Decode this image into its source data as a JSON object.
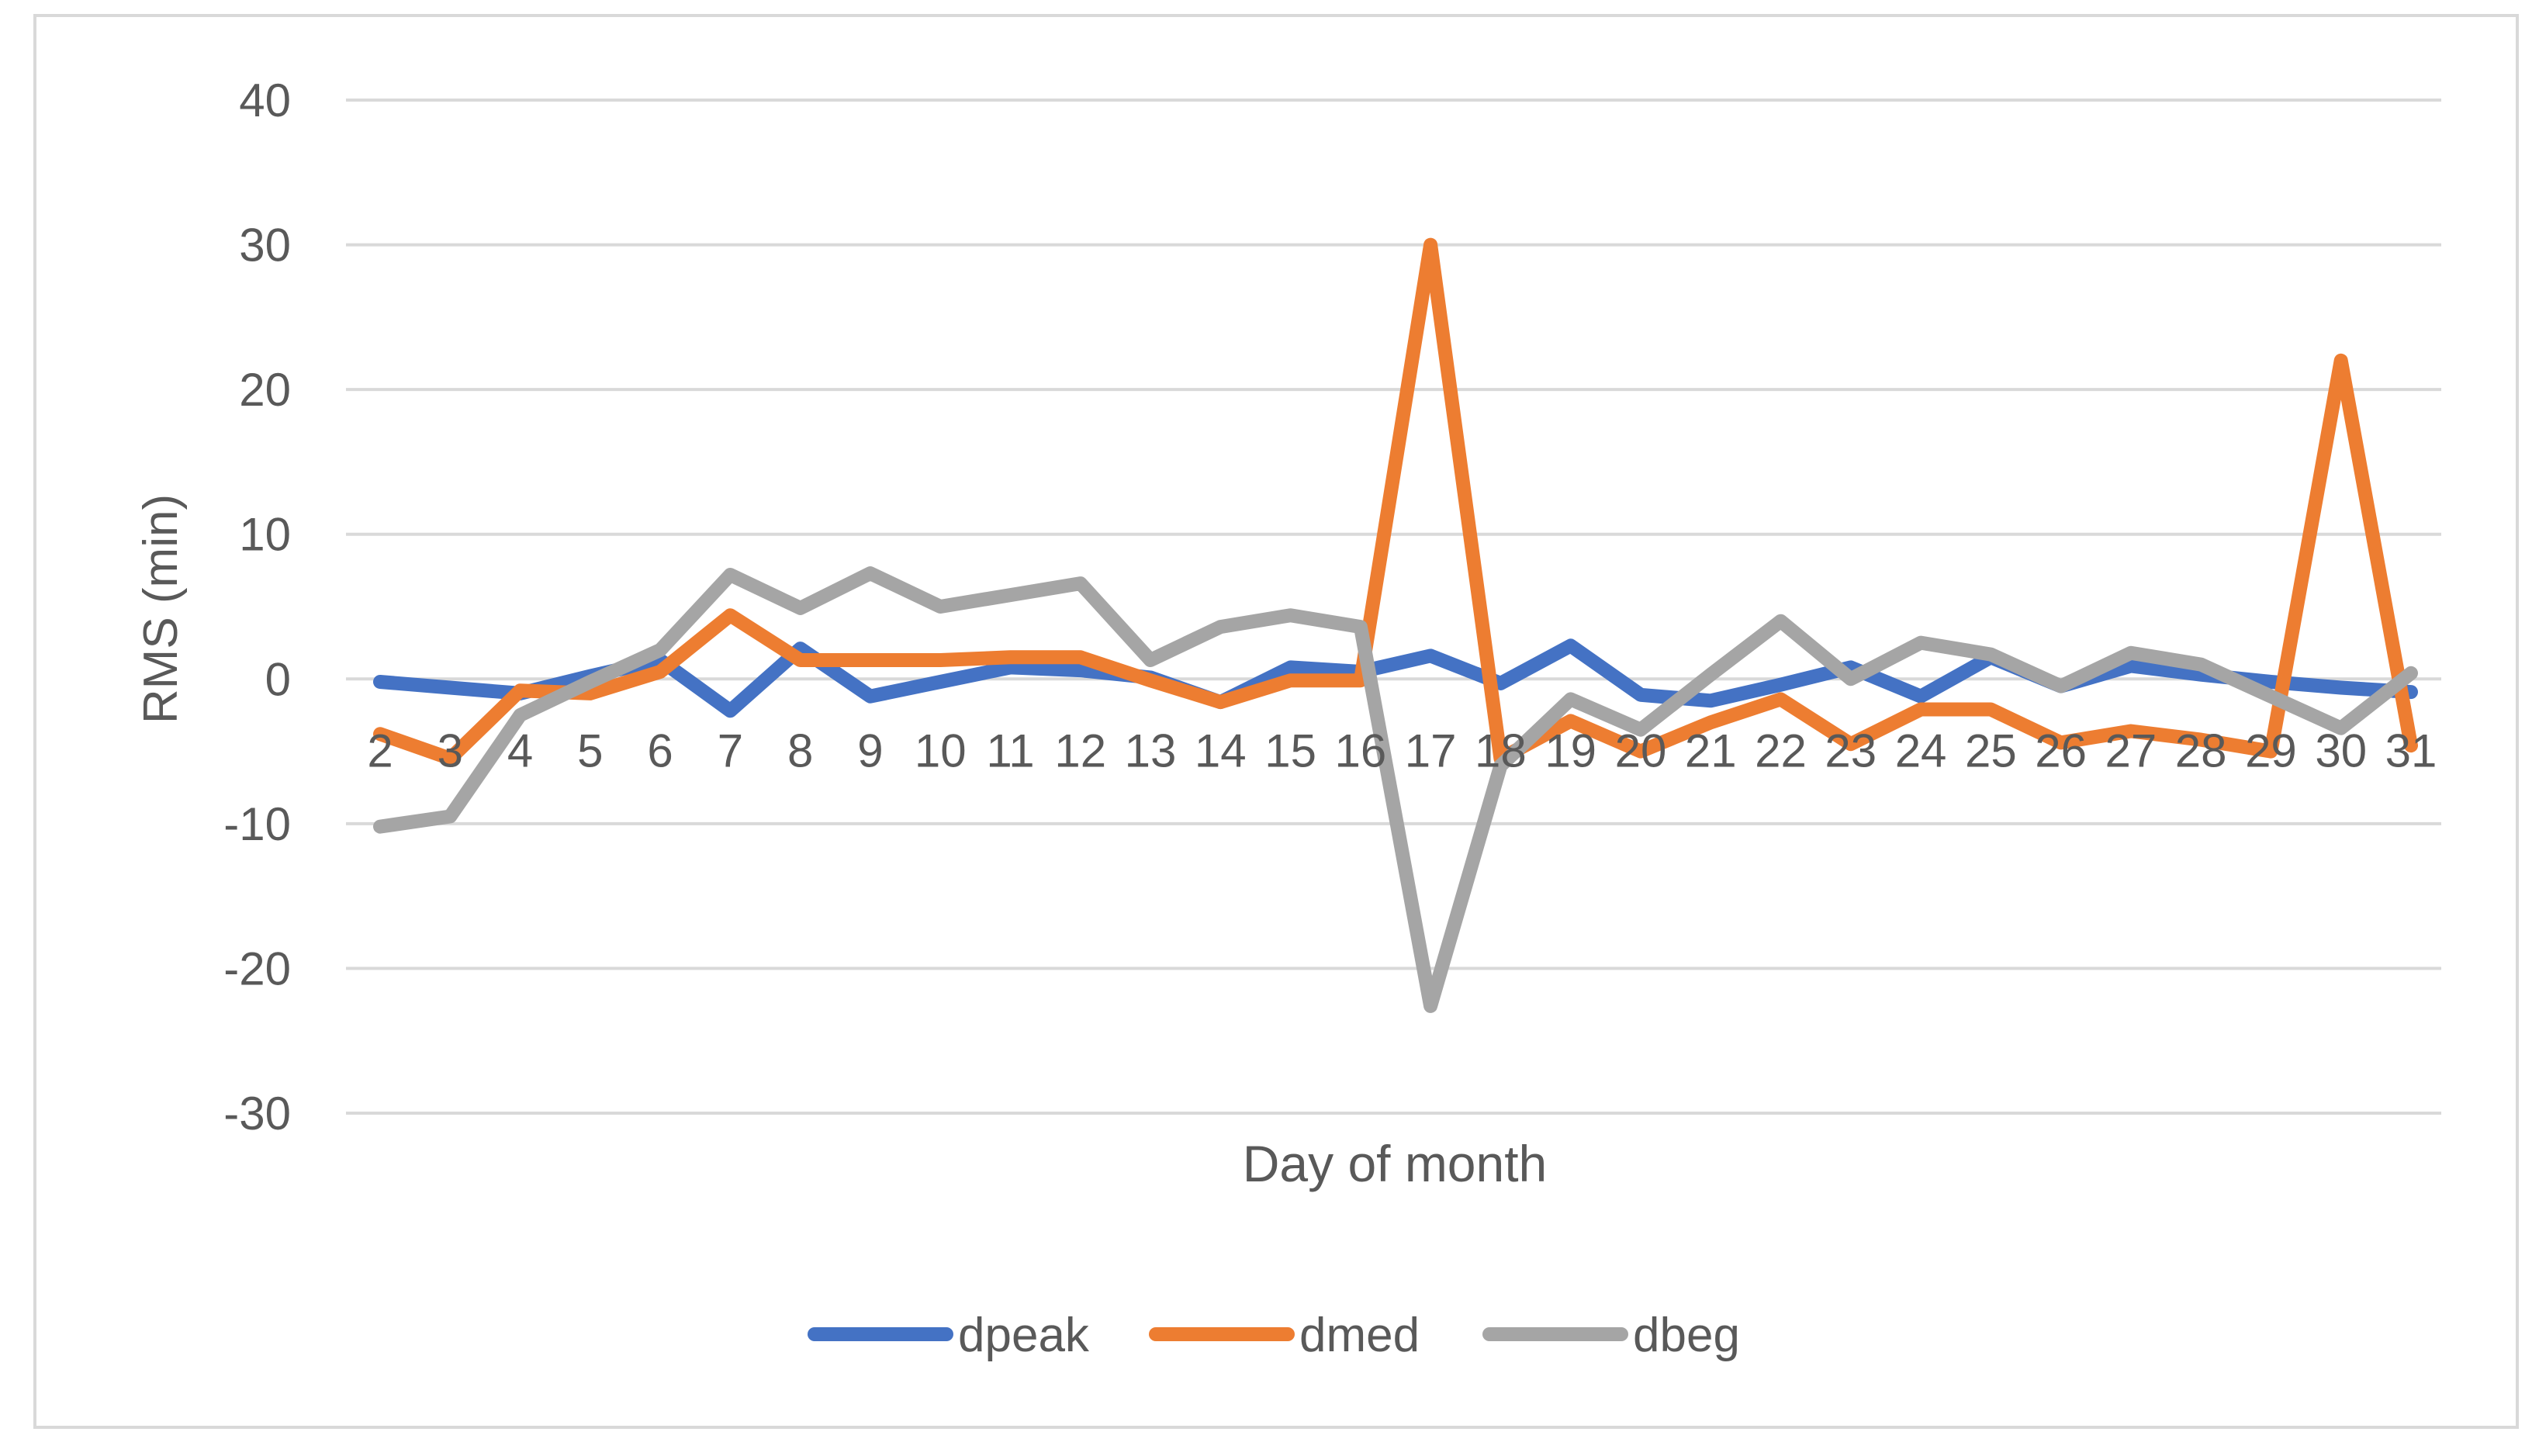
{
  "chart_data": {
    "type": "line",
    "title": "",
    "xlabel": "Day of month",
    "ylabel": "RMS (min)",
    "categories": [
      "2",
      "3",
      "4",
      "5",
      "6",
      "7",
      "8",
      "9",
      "10",
      "11",
      "12",
      "13",
      "14",
      "15",
      "16",
      "17",
      "18",
      "19",
      "20",
      "21",
      "22",
      "23",
      "24",
      "25",
      "26",
      "27",
      "28",
      "29",
      "30",
      "31"
    ],
    "ylim": [
      -30,
      40
    ],
    "yticks": [
      40,
      30,
      20,
      10,
      0,
      -10,
      -20,
      -30
    ],
    "grid": true,
    "legend_position": "bottom",
    "series": [
      {
        "name": "dpeak",
        "color": "#4472C4",
        "values": [
          -0.2,
          -0.6,
          -1.0,
          0.2,
          1.3,
          -2.2,
          2.1,
          -1.2,
          -0.2,
          0.8,
          0.6,
          0.1,
          -1.6,
          0.8,
          0.5,
          1.6,
          -0.3,
          2.3,
          -1.1,
          -1.5,
          -0.4,
          0.8,
          -1.2,
          1.5,
          -0.5,
          0.9,
          0.3,
          -0.2,
          -0.6,
          -0.9
        ]
      },
      {
        "name": "dmed",
        "color": "#ED7D31",
        "values": [
          -3.8,
          -5.5,
          -0.8,
          -1.0,
          0.5,
          4.4,
          1.3,
          1.3,
          1.3,
          1.5,
          1.5,
          -0.1,
          -1.6,
          -0.1,
          -0.1,
          30.0,
          -5.5,
          -2.9,
          -5.0,
          -3.0,
          -1.4,
          -4.5,
          -2.1,
          -2.1,
          -4.4,
          -3.6,
          -4.2,
          -5.0,
          22.0,
          -4.6
        ]
      },
      {
        "name": "dbeg",
        "color": "#A5A5A5",
        "values": [
          -10.2,
          -9.5,
          -2.5,
          -0.2,
          2.0,
          7.2,
          4.9,
          7.3,
          5.0,
          5.8,
          6.6,
          1.3,
          3.6,
          4.4,
          3.6,
          -22.6,
          -6.0,
          -1.4,
          -3.5,
          0.3,
          4.0,
          0.0,
          2.5,
          1.7,
          -0.5,
          1.8,
          1.0,
          -1.2,
          -3.4,
          0.4
        ]
      }
    ]
  }
}
